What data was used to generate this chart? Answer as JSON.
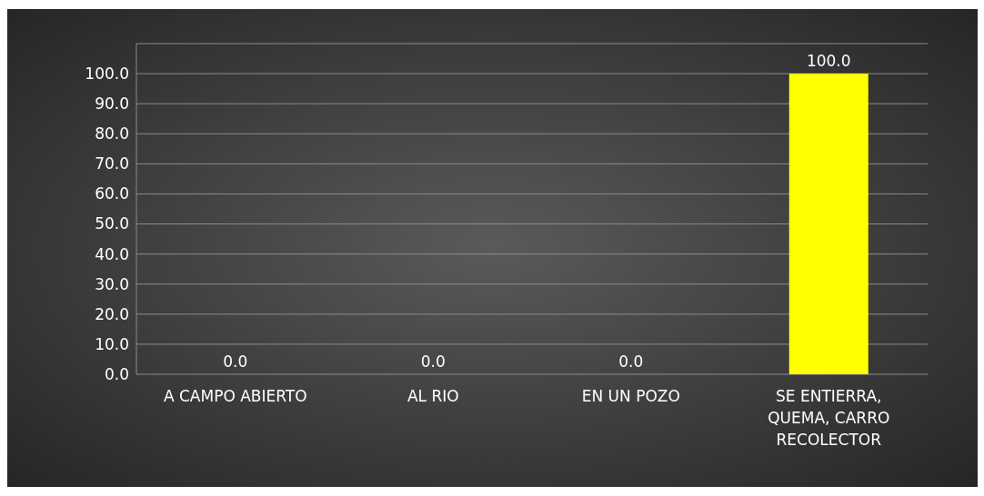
{
  "chart_data": {
    "type": "bar",
    "categories": [
      "A CAMPO ABIERTO",
      "AL RIO",
      "EN UN POZO",
      "SE ENTIERRA, QUEMA, CARRO RECOLECTOR"
    ],
    "values": [
      0,
      0,
      0,
      100
    ],
    "color": "#ffff00",
    "value_labels": [
      "0.0",
      "0.0",
      "0.0",
      "100.0"
    ],
    "ylim": [
      0,
      110
    ],
    "yticks": [
      {
        "value": 0,
        "label": "0.0"
      },
      {
        "value": 10,
        "label": "10.0"
      },
      {
        "value": 20,
        "label": "20.0"
      },
      {
        "value": 30,
        "label": "30.0"
      },
      {
        "value": 40,
        "label": "40.0"
      },
      {
        "value": 50,
        "label": "50.0"
      },
      {
        "value": 60,
        "label": "60.0"
      },
      {
        "value": 70,
        "label": "70.0"
      },
      {
        "value": 80,
        "label": "80.0"
      },
      {
        "value": 90,
        "label": "90.0"
      },
      {
        "value": 100,
        "label": "100.0"
      },
      {
        "value": 110,
        "label": null
      }
    ],
    "grid": true
  }
}
